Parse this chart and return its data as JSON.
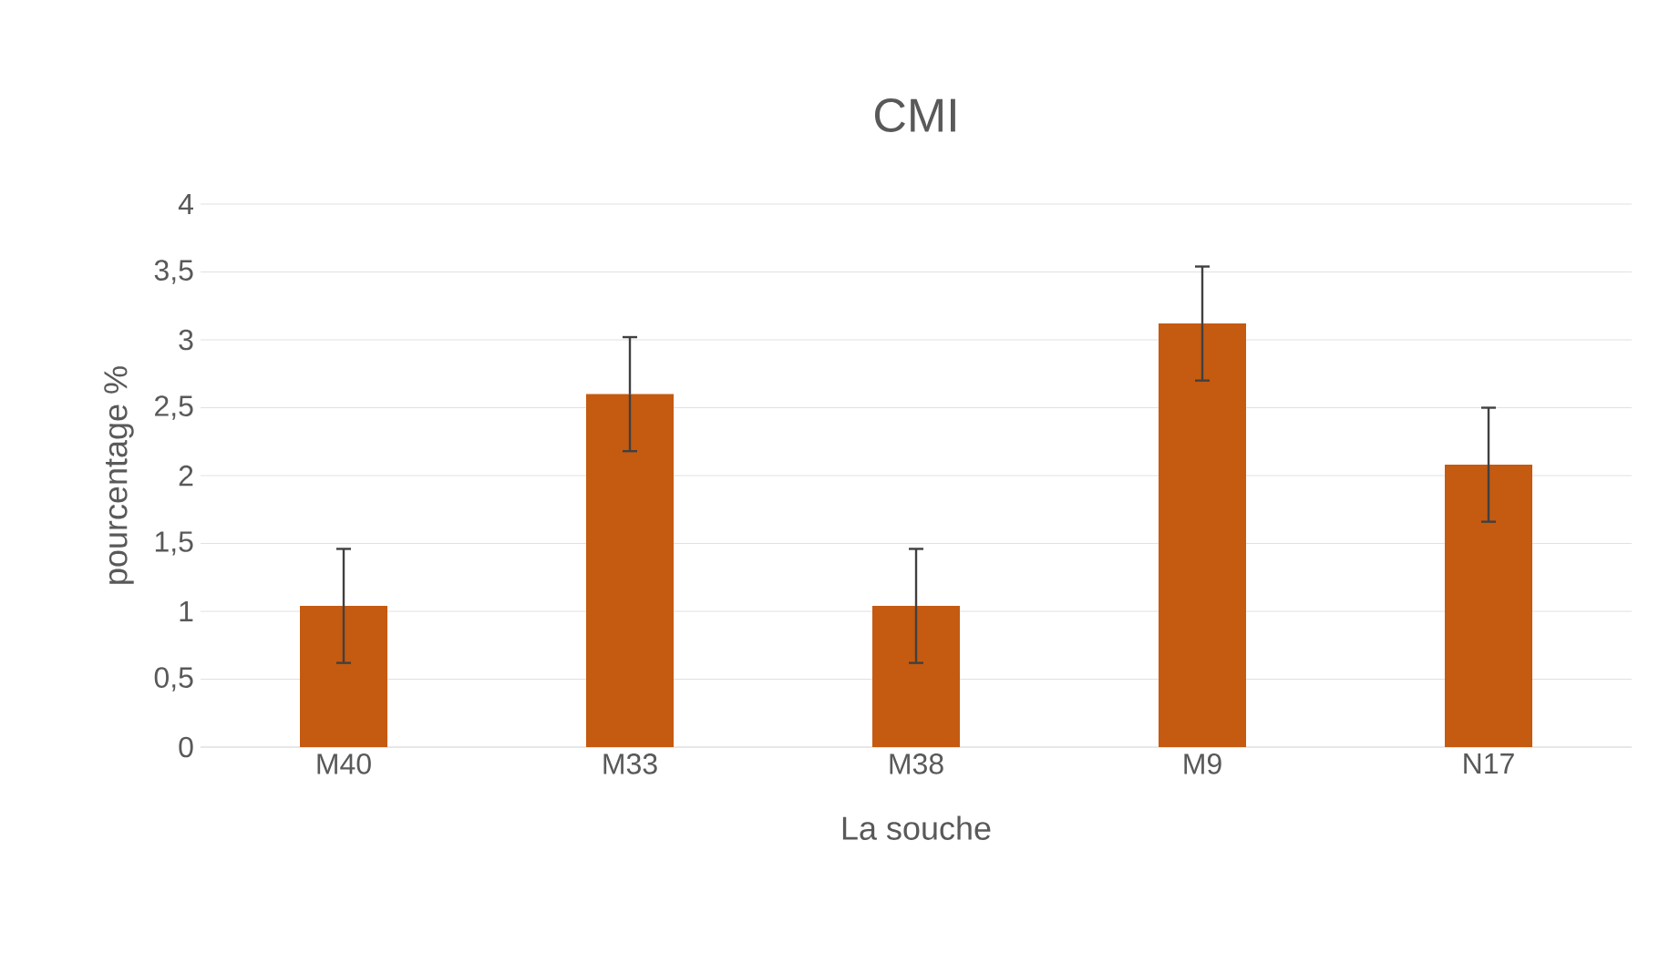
{
  "chart_data": {
    "type": "bar",
    "title": "CMI",
    "xlabel": "La souche",
    "ylabel": "pourcentage %",
    "categories": [
      "M40",
      "M33",
      "M38",
      "M9",
      "N17"
    ],
    "values": [
      1.04,
      2.6,
      1.04,
      3.12,
      2.08
    ],
    "errors": [
      0.42,
      0.42,
      0.42,
      0.42,
      0.42
    ],
    "color": "#c55a11",
    "ylim": [
      0,
      4
    ],
    "yticks": [
      0,
      {
        "value": 0.5,
        "label": "0,5"
      },
      1,
      {
        "value": 1.5,
        "label": "1,5"
      },
      2,
      {
        "value": 2.5,
        "label": "2,5"
      },
      3,
      {
        "value": 3.5,
        "label": "3,5"
      },
      4
    ],
    "grid": "y"
  }
}
